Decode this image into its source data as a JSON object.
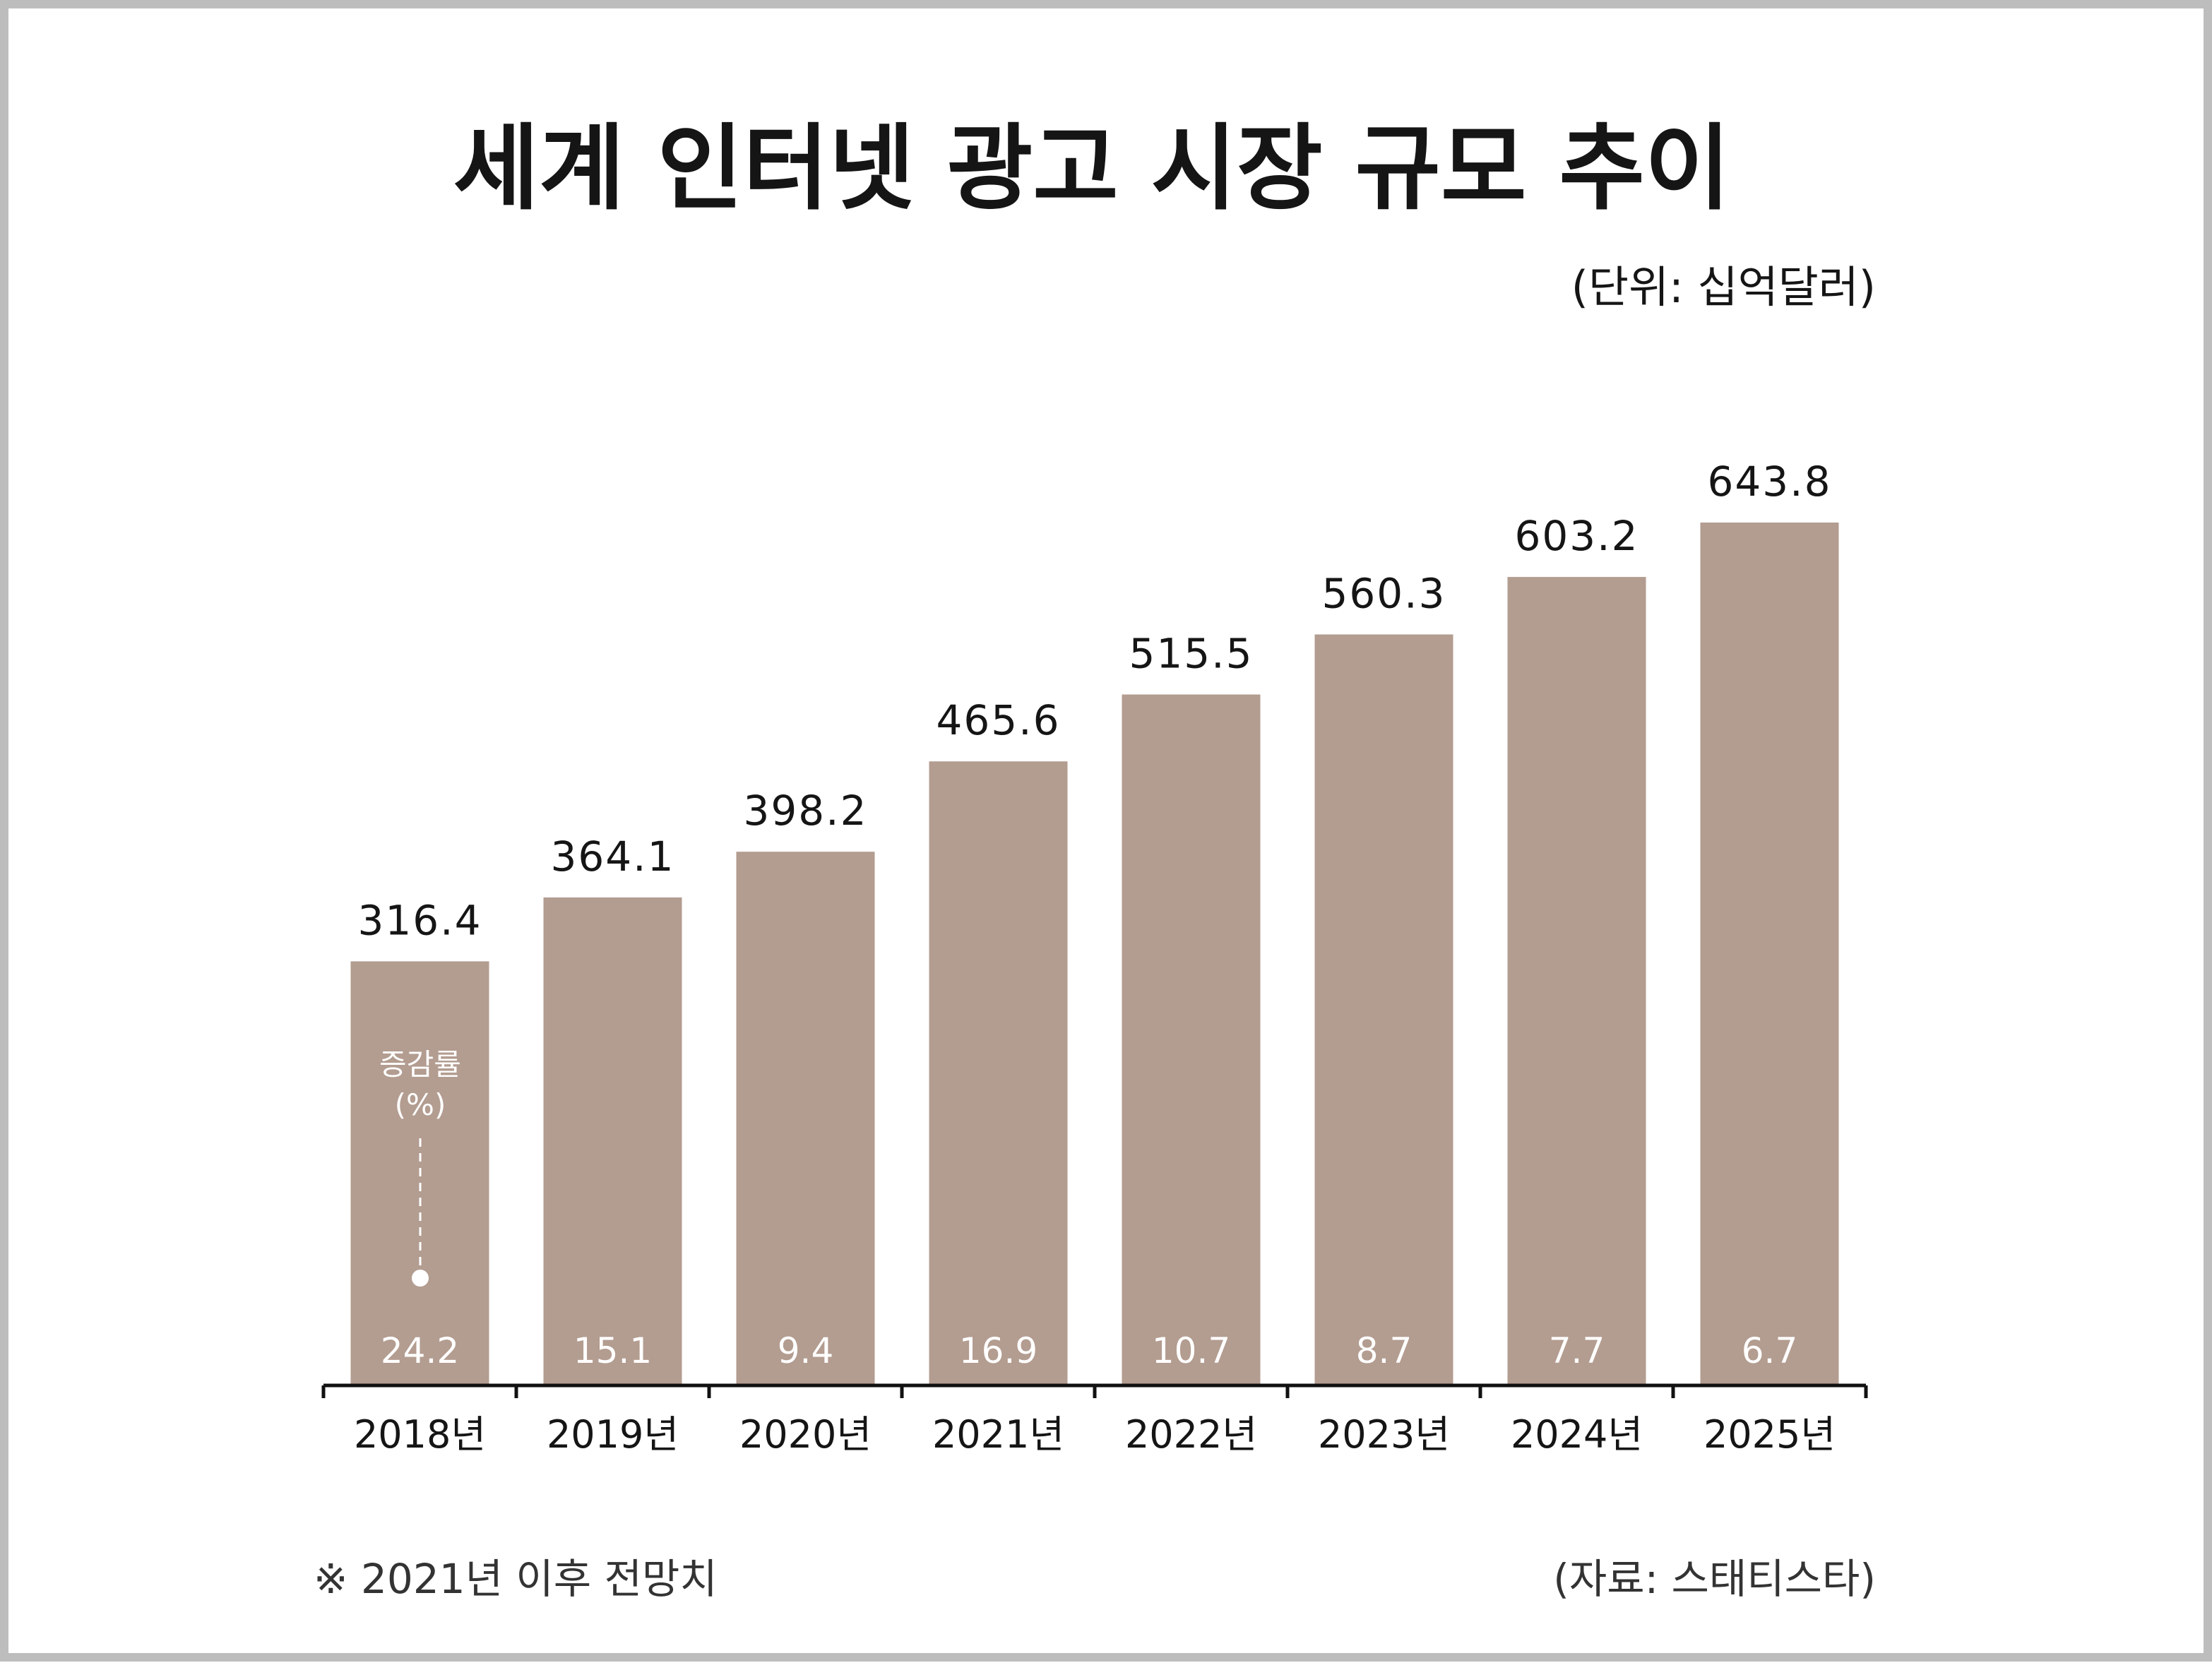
{
  "chart_data": {
    "type": "bar",
    "title": "세계 인터넷 광고 시장 규모 추이",
    "unit": "(단위: 십억달러)",
    "categories": [
      "2018년",
      "2019년",
      "2020년",
      "2021년",
      "2022년",
      "2023년",
      "2024년",
      "2025년"
    ],
    "values": [
      316.4,
      364.1,
      398.2,
      465.6,
      515.5,
      560.3,
      603.2,
      643.8
    ],
    "value_labels": [
      "316.4",
      "364.1",
      "398.2",
      "465.6",
      "515.5",
      "560.3",
      "603.2",
      "643.8"
    ],
    "growth_rate_label": "증감률",
    "growth_rate_unit": "(%)",
    "growth_rates": [
      "24.2",
      "15.1",
      "9.4",
      "16.9",
      "10.7",
      "8.7",
      "7.7",
      "6.7"
    ],
    "footnote": "※ 2021년 이후 전망치",
    "source": "(자료: 스태티스타)",
    "bar_color": "#b39c90"
  }
}
